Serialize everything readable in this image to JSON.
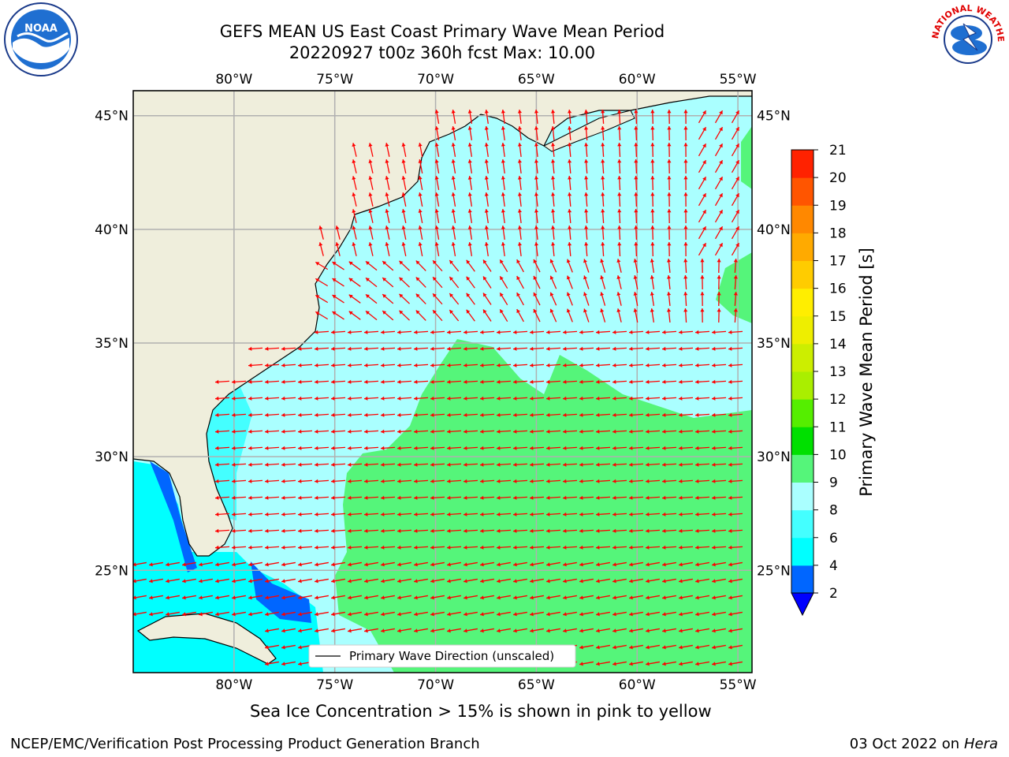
{
  "title_line1": "GEFS MEAN US East Coast Primary Wave Mean Period",
  "title_line2": "20220927 t00z 360h fcst   Max: 10.00",
  "footer_note": "Sea Ice Concentration > 15% is shown in pink to yellow",
  "credit": "NCEP/EMC/Verification Post Processing Product Generation Branch",
  "date_text": "03 Oct 2022 on",
  "machine": "Hera",
  "legend_label": "Primary Wave Direction (unscaled)",
  "colorbar_label": "Primary Wave Mean Period [s]",
  "logos": {
    "noaa_text": "NOAA",
    "nws_text": "NATIONAL WEATHER SERVICE"
  },
  "map": {
    "lon_range": [
      -85,
      -54.3
    ],
    "lat_range": [
      20.5,
      46.1
    ],
    "lon_ticks": [
      -80,
      -75,
      -70,
      -65,
      -60,
      -55
    ],
    "lon_tick_labels": [
      "80°W",
      "75°W",
      "70°W",
      "65°W",
      "60°W",
      "55°W"
    ],
    "lat_ticks": [
      25,
      30,
      35,
      40,
      45
    ],
    "lat_tick_labels": [
      "25°N",
      "30°N",
      "35°N",
      "40°N",
      "45°N"
    ],
    "land_color": "#efeedc",
    "arrow_color": "#ff0000"
  },
  "colorbar": {
    "levels": [
      2,
      4,
      6,
      8,
      9,
      10,
      11,
      12,
      13,
      14,
      15,
      16,
      17,
      18,
      19,
      20,
      21
    ],
    "colors": [
      "#0066ff",
      "#00ffff",
      "#44ffff",
      "#aaffff",
      "#55f57a",
      "#00e000",
      "#55ee00",
      "#aaee00",
      "#ccee00",
      "#eeee00",
      "#ffee00",
      "#ffcc00",
      "#ffaa00",
      "#ff8800",
      "#ff5500",
      "#ff2200"
    ],
    "extend_color": "#0000ff"
  }
}
